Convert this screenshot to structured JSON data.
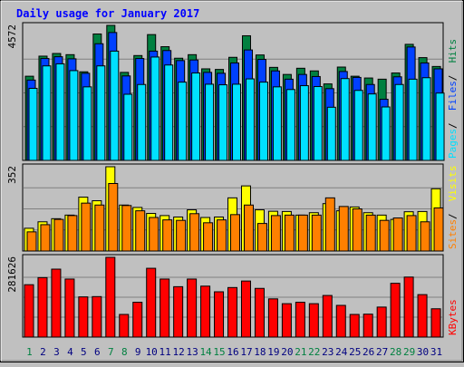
{
  "chart_data": [
    {
      "type": "bar",
      "title": "Daily usage for January 2017",
      "categories": [
        "1",
        "2",
        "3",
        "4",
        "5",
        "6",
        "7",
        "8",
        "9",
        "10",
        "11",
        "12",
        "13",
        "14",
        "15",
        "16",
        "17",
        "18",
        "19",
        "20",
        "21",
        "22",
        "23",
        "24",
        "25",
        "26",
        "27",
        "28",
        "29",
        "30",
        "31"
      ],
      "weekend_days": [
        "1",
        "7",
        "8",
        "14",
        "15",
        "21",
        "22",
        "28",
        "29"
      ],
      "ymax_label": "4572",
      "ylim": [
        0,
        4572
      ],
      "legend": [
        "Pages",
        "Files",
        "Hits"
      ],
      "series": [
        {
          "name": "Hits",
          "color": "#008040",
          "values": [
            2850,
            3530,
            3620,
            3580,
            3000,
            4280,
            4572,
            2980,
            3550,
            4260,
            3850,
            3460,
            3580,
            3100,
            3080,
            3490,
            4220,
            3570,
            3150,
            2910,
            3120,
            3030,
            2590,
            3160,
            2850,
            2790,
            2750,
            2960,
            3930,
            3480,
            3180
          ]
        },
        {
          "name": "Files",
          "color": "#0040ff",
          "values": [
            2720,
            3450,
            3510,
            3440,
            2950,
            3950,
            4330,
            2860,
            3450,
            3700,
            3720,
            3380,
            3400,
            2980,
            2950,
            3300,
            3740,
            3420,
            3030,
            2750,
            2910,
            2840,
            2430,
            3010,
            2810,
            2570,
            2070,
            2830,
            3840,
            3300,
            3100
          ]
        },
        {
          "name": "Pages",
          "color": "#00e0ff",
          "values": [
            2440,
            3200,
            3270,
            3040,
            2490,
            3200,
            3700,
            2240,
            2570,
            3500,
            3230,
            2650,
            2960,
            2580,
            2560,
            2580,
            2760,
            2650,
            2490,
            2400,
            2530,
            2500,
            1800,
            2770,
            2370,
            2250,
            1810,
            2570,
            2750,
            2800,
            2280
          ]
        }
      ]
    },
    {
      "type": "bar",
      "ymax_label": "352",
      "ylim": [
        0,
        352
      ],
      "legend": [
        "Sites",
        "Visits"
      ],
      "series": [
        {
          "name": "Visits",
          "color": "#ffff00",
          "values": [
            95,
            122,
            135,
            150,
            225,
            210,
            352,
            192,
            182,
            157,
            148,
            142,
            172,
            140,
            142,
            222,
            272,
            172,
            166,
            165,
            150,
            160,
            198,
            168,
            184,
            160,
            150,
            132,
            164,
            165,
            260
          ]
        },
        {
          "name": "Sites",
          "color": "#ff8000",
          "values": [
            80,
            110,
            132,
            148,
            200,
            192,
            282,
            190,
            168,
            140,
            130,
            128,
            156,
            118,
            130,
            152,
            192,
            115,
            148,
            150,
            150,
            150,
            222,
            186,
            176,
            150,
            128,
            138,
            148,
            122,
            180
          ]
        }
      ]
    },
    {
      "type": "bar",
      "ymax_label": "281626",
      "ylim": [
        0,
        281626
      ],
      "legend": [
        "KBytes"
      ],
      "series": [
        {
          "name": "KBytes",
          "color": "#ff0000",
          "values": [
            185000,
            210000,
            240000,
            205000,
            142000,
            143000,
            281626,
            80000,
            123000,
            243000,
            205000,
            178000,
            205000,
            180000,
            160000,
            175000,
            198000,
            172000,
            135000,
            118000,
            123000,
            118000,
            147000,
            112000,
            80000,
            81000,
            106000,
            190000,
            212000,
            150000,
            100000
          ]
        }
      ]
    }
  ]
}
